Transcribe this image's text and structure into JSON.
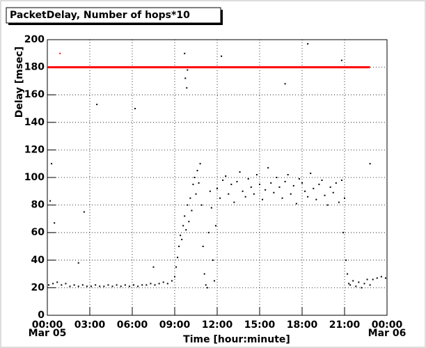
{
  "chart_data": {
    "type": "scatter",
    "title": "PacketDelay, Number of hops*10",
    "ylabel": "Delay [msec]",
    "xlabel": "Time [hour:minute]",
    "xlim": [
      0,
      24
    ],
    "ylim": [
      0,
      200
    ],
    "xticks": [
      {
        "value": 0,
        "label": "00:00"
      },
      {
        "value": 3,
        "label": "03:00"
      },
      {
        "value": 6,
        "label": "06:00"
      },
      {
        "value": 9,
        "label": "09:00"
      },
      {
        "value": 12,
        "label": "12:00"
      },
      {
        "value": 15,
        "label": "15:00"
      },
      {
        "value": 18,
        "label": "18:00"
      },
      {
        "value": 21,
        "label": "21:00"
      },
      {
        "value": 24,
        "label": "00:00"
      }
    ],
    "xdates": [
      {
        "value": 0,
        "label": "Mar 05"
      },
      {
        "value": 24,
        "label": "Mar 06"
      }
    ],
    "yticks": [
      0,
      20,
      40,
      60,
      80,
      100,
      120,
      140,
      160,
      180,
      200
    ],
    "grid": true,
    "series": [
      {
        "name": "Delay",
        "color": "#000000",
        "x": [
          0.1,
          0.4,
          0.7,
          1.0,
          1.3,
          1.6,
          1.9,
          2.2,
          2.5,
          2.8,
          3.1,
          3.4,
          3.7,
          4.0,
          4.3,
          4.6,
          4.9,
          5.2,
          5.5,
          5.8,
          6.1,
          6.4,
          6.7,
          7.0,
          7.3,
          7.6,
          7.9,
          8.2,
          8.5,
          8.8,
          9.0,
          9.1,
          9.2,
          9.3,
          9.4,
          9.5,
          9.6,
          9.7,
          9.8,
          9.9,
          10.0,
          10.1,
          10.2,
          10.3,
          10.4,
          10.5,
          10.6,
          10.7,
          10.8,
          10.9,
          11.0,
          11.1,
          11.2,
          11.3,
          11.4,
          11.5,
          11.6,
          11.7,
          11.8,
          11.9,
          12.0,
          12.2,
          12.4,
          12.6,
          12.8,
          13.0,
          13.2,
          13.4,
          13.6,
          13.8,
          14.0,
          14.2,
          14.4,
          14.6,
          14.8,
          15.0,
          15.2,
          15.4,
          15.6,
          15.8,
          16.0,
          16.2,
          16.4,
          16.6,
          16.8,
          17.0,
          17.2,
          17.4,
          17.6,
          17.8,
          18.0,
          18.2,
          18.4,
          18.6,
          18.8,
          19.0,
          19.2,
          19.4,
          19.6,
          19.8,
          20.0,
          20.2,
          20.4,
          20.6,
          20.8,
          20.9,
          21.0,
          21.1,
          21.2,
          21.3,
          21.4,
          21.6,
          21.8,
          22.0,
          22.2,
          22.4,
          22.6,
          22.8,
          23.0,
          23.3,
          23.6,
          23.9,
          9.7,
          9.75,
          9.85,
          9.9,
          3.5,
          6.2,
          18.4,
          16.8,
          22.8,
          0.3,
          0.2,
          0.5,
          2.2,
          7.5,
          2.6,
          20.8,
          12.3
        ],
        "values": [
          22,
          23,
          24,
          22,
          23,
          21,
          22,
          21,
          22,
          21,
          21,
          22,
          21,
          21,
          22,
          21,
          22,
          21,
          22,
          21,
          22,
          21,
          22,
          22,
          23,
          22,
          23,
          24,
          23,
          25,
          28,
          35,
          42,
          50,
          58,
          55,
          65,
          72,
          62,
          80,
          68,
          85,
          76,
          95,
          100,
          88,
          105,
          96,
          110,
          80,
          50,
          30,
          22,
          20,
          60,
          90,
          78,
          40,
          25,
          65,
          92,
          85,
          98,
          101,
          88,
          95,
          82,
          97,
          104,
          90,
          86,
          99,
          93,
          88,
          102,
          95,
          84,
          91,
          107,
          96,
          89,
          100,
          93,
          85,
          97,
          102,
          88,
          94,
          81,
          99,
          96,
          90,
          86,
          103,
          92,
          84,
          95,
          98,
          87,
          80,
          93,
          89,
          96,
          82,
          98,
          60,
          85,
          40,
          30,
          23,
          22,
          25,
          21,
          24,
          20,
          23,
          26,
          22,
          26,
          27,
          28,
          27,
          190,
          172,
          165,
          178,
          153,
          150,
          197,
          168,
          110,
          110,
          83,
          67,
          38,
          35,
          75,
          185,
          188
        ]
      },
      {
        "name": "Number of hops*10",
        "color": "#ff0000",
        "line": true,
        "x": [
          0.05,
          22.8
        ],
        "values": [
          180,
          180
        ]
      },
      {
        "name": "Number of hops*10 outlier",
        "color": "#ff0000",
        "x": [
          0.9
        ],
        "values": [
          190
        ]
      }
    ]
  }
}
